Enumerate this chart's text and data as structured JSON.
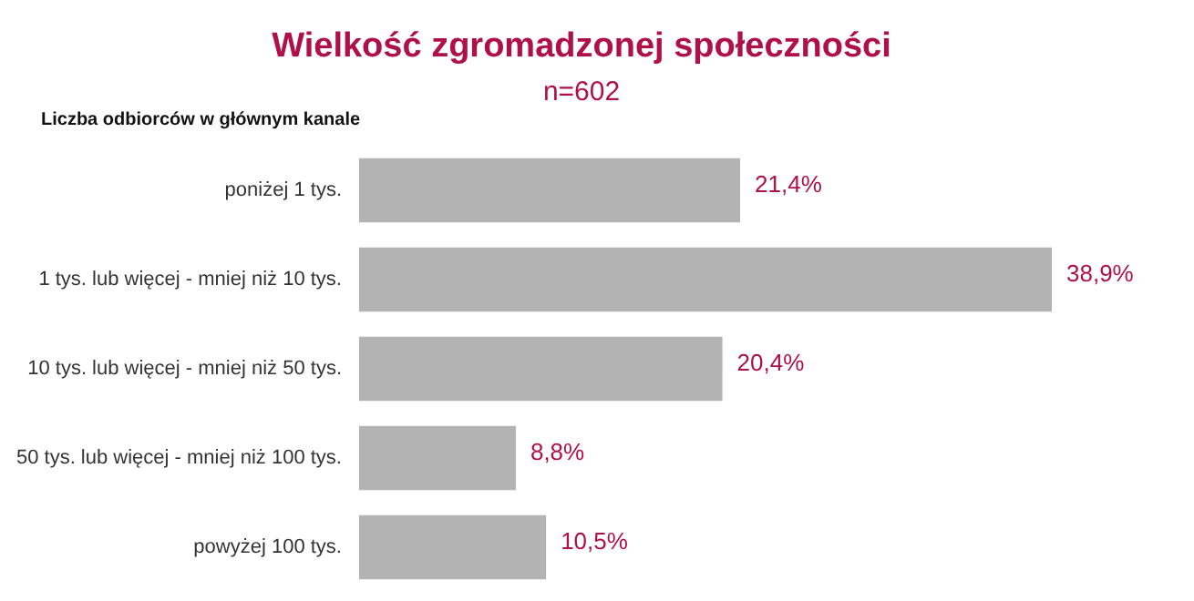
{
  "chart_data": {
    "type": "bar",
    "orientation": "horizontal",
    "title": "Wielkość zgromadzonej społeczności",
    "subtitle": "n=602",
    "ylabel": "Liczba odbiorców w głównym kanale",
    "categories": [
      "poniżej 1 tys.",
      "1 tys. lub więcej - mniej niż 10 tys.",
      "10 tys. lub więcej - mniej niż 50 tys.",
      "50 tys. lub więcej - mniej niż 100 tys.",
      "powyżej 100 tys."
    ],
    "values": [
      21.4,
      38.9,
      20.4,
      8.8,
      10.5
    ],
    "value_labels": [
      "21,4%",
      "38,9%",
      "20,4%",
      "8,8%",
      "10,5%"
    ],
    "color": "#b3b3b3",
    "tick_labels": "y"
  }
}
